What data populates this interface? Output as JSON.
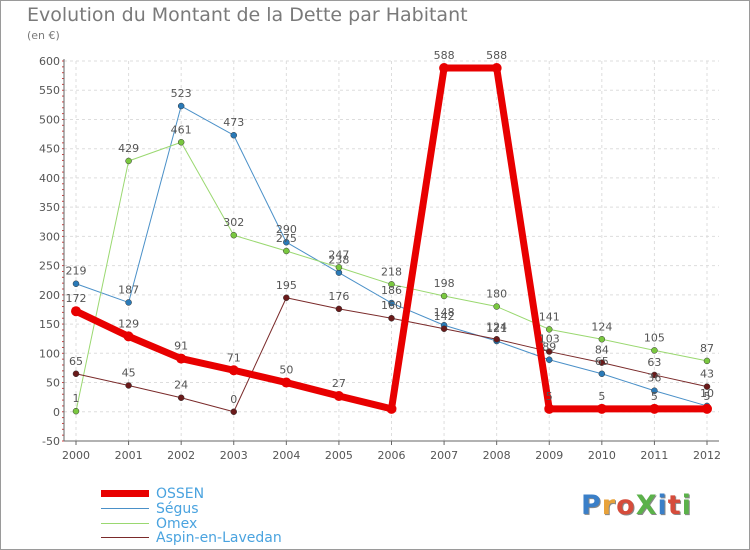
{
  "title": "Evolution du Montant de la Dette par Habitant",
  "unit": "(en €)",
  "brand": {
    "text": "ProXiti",
    "colors": [
      "#3a7fc8",
      "#e8a23a",
      "#d64c3b",
      "#5bb24a",
      "#3a7fc8",
      "#d64c3b",
      "#5bb24a"
    ]
  },
  "chart_data": {
    "type": "line",
    "title": "Evolution du Montant de la Dette par Habitant",
    "ylabel": "(en €)",
    "xlabel": "",
    "x": [
      "2000",
      "2001",
      "2002",
      "2003",
      "2004",
      "2005",
      "2006",
      "2007",
      "2008",
      "2009",
      "2010",
      "2011",
      "2012"
    ],
    "ylim": [
      -50,
      600
    ],
    "yticks": [
      -50,
      0,
      50,
      100,
      150,
      200,
      250,
      300,
      350,
      400,
      450,
      500,
      550,
      600
    ],
    "grid": true,
    "series": [
      {
        "name": "Ségus",
        "color": "#4a90c8",
        "marker": "#2a7ab8",
        "width": 1,
        "values": [
          219,
          187,
          523,
          473,
          290,
          238,
          186,
          148,
          121,
          89,
          65,
          36,
          10
        ],
        "labels": [
          "219",
          "187",
          "523",
          "473",
          "290",
          "238",
          "186",
          "148",
          "121",
          "89",
          "65",
          "36",
          "10"
        ]
      },
      {
        "name": "Omex",
        "color": "#9ad870",
        "marker": "#7ac840",
        "width": 1,
        "values": [
          1,
          429,
          461,
          302,
          275,
          247,
          218,
          198,
          180,
          141,
          124,
          105,
          87
        ],
        "labels": [
          "1",
          "429",
          "461",
          "302",
          "275",
          "247",
          "218",
          "198",
          "180",
          "141",
          "124",
          "105",
          "87"
        ]
      },
      {
        "name": "Aspin-en-Lavedan",
        "color": "#7a2a2a",
        "marker": "#6a1a1a",
        "width": 1,
        "values": [
          65,
          45,
          24,
          0,
          195,
          176,
          160,
          142,
          124,
          103,
          84,
          63,
          43
        ],
        "labels": [
          "65",
          "45",
          "24",
          "0",
          "195",
          "176",
          "160",
          "142",
          "124",
          "103",
          "84",
          "63",
          "43"
        ]
      },
      {
        "name": "OSSEN",
        "color": "#e80000",
        "marker": "#e80000",
        "width": 7,
        "values": [
          172,
          129,
          91,
          71,
          50,
          27,
          5,
          588,
          588,
          5,
          5,
          5,
          5
        ],
        "labels": [
          "172",
          "129",
          "91",
          "71",
          "50",
          "27",
          "",
          "588",
          "588",
          "5",
          "5",
          "5",
          "5"
        ]
      }
    ],
    "legend": {
      "placement": "bottom-left",
      "order": [
        "OSSEN",
        "Ségus",
        "Omex",
        "Aspin-en-Lavedan"
      ]
    }
  }
}
